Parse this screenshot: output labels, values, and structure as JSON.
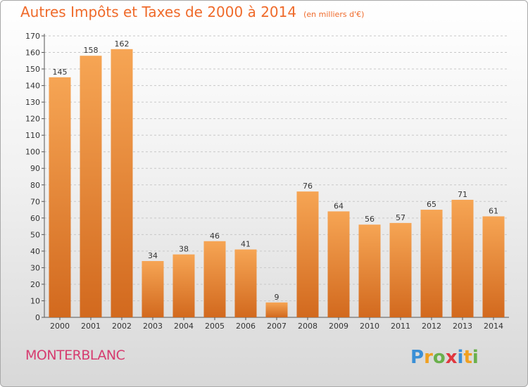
{
  "title": "Autres Impôts et Taxes de 2000 à 2014",
  "subtitle": "(en milliers d'€)",
  "commune": "MONTERBLANC",
  "logo_text": "Proxiti",
  "colors": {
    "title": "#ef6a2a",
    "bar_top": "#f6a554",
    "bar_bottom": "#d2691e",
    "commune": "#d63b6f",
    "grid": "#c8c8c8"
  },
  "chart_data": {
    "type": "bar",
    "title": "Autres Impôts et Taxes de 2000 à 2014",
    "subtitle": "(en milliers d'€)",
    "categories": [
      "2000",
      "2001",
      "2002",
      "2003",
      "2004",
      "2005",
      "2006",
      "2007",
      "2008",
      "2009",
      "2010",
      "2011",
      "2012",
      "2013",
      "2014"
    ],
    "values": [
      145,
      158,
      162,
      34,
      38,
      46,
      41,
      9,
      76,
      64,
      56,
      57,
      65,
      71,
      61
    ],
    "ylim": [
      0,
      170
    ],
    "yticks": [
      0,
      10,
      20,
      30,
      40,
      50,
      60,
      70,
      80,
      90,
      100,
      110,
      120,
      130,
      140,
      150,
      160,
      170
    ],
    "grid": "horizontal dashed",
    "xlabel": "",
    "ylabel": ""
  }
}
